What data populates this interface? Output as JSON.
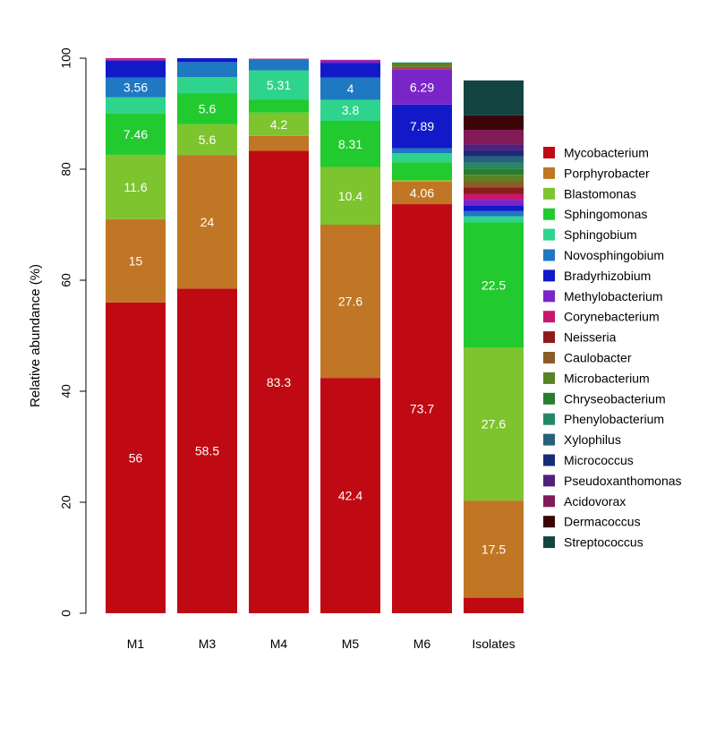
{
  "chart_data": {
    "type": "bar",
    "stacked": true,
    "title": "",
    "xlabel": "",
    "ylabel": "Relative abundance (%)",
    "ylim": [
      0,
      100
    ],
    "yticks": [
      0,
      20,
      40,
      60,
      80,
      100
    ],
    "grid": false,
    "legend_position": "right",
    "categories": [
      "M1",
      "M3",
      "M4",
      "M5",
      "M6",
      "Isolates"
    ],
    "series": [
      {
        "name": "Mycobacterium",
        "color": "#bf0a13",
        "values": [
          56,
          58.5,
          83.3,
          42.4,
          73.7,
          2.8
        ]
      },
      {
        "name": "Porphyrobacter",
        "color": "#c07624",
        "values": [
          15,
          24,
          2.7,
          27.6,
          4.06,
          17.5
        ]
      },
      {
        "name": "Blastomonas",
        "color": "#7dc42e",
        "values": [
          11.6,
          5.6,
          4.2,
          10.4,
          0.3,
          27.6
        ]
      },
      {
        "name": "Sphingomonas",
        "color": "#22c92f",
        "values": [
          7.46,
          5.6,
          2.3,
          8.31,
          3.2,
          22.5
        ]
      },
      {
        "name": "Sphingobium",
        "color": "#2fd48c",
        "values": [
          2.9,
          2.9,
          5.31,
          3.8,
          1.6,
          1.1
        ]
      },
      {
        "name": "Novosphingobium",
        "color": "#1f78c2",
        "values": [
          3.56,
          2.7,
          1.9,
          4,
          0.9,
          1.0
        ]
      },
      {
        "name": "Bradyrhizobium",
        "color": "#1119c9",
        "values": [
          3.0,
          0.7,
          0.1,
          2.6,
          7.89,
          1.0
        ]
      },
      {
        "name": "Methylobacterium",
        "color": "#7a25c8",
        "values": [
          0.2,
          0,
          0,
          0.5,
          6.29,
          1.0
        ]
      },
      {
        "name": "Corynebacterium",
        "color": "#c8166f",
        "values": [
          0.3,
          0.1,
          0.1,
          0.1,
          0.2,
          1.0
        ]
      },
      {
        "name": "Neisseria",
        "color": "#8c1b1b",
        "values": [
          0,
          0,
          0,
          0,
          0,
          1.2
        ]
      },
      {
        "name": "Caulobacter",
        "color": "#8a5d27",
        "values": [
          0,
          0,
          0,
          0,
          0.3,
          1.2
        ]
      },
      {
        "name": "Microbacterium",
        "color": "#5a8226",
        "values": [
          0,
          0,
          0,
          0,
          0.6,
          1.1
        ]
      },
      {
        "name": "Chryseobacterium",
        "color": "#2a7d2e",
        "values": [
          0,
          0,
          0,
          0,
          0,
          1.1
        ]
      },
      {
        "name": "Phenylobacterium",
        "color": "#268766",
        "values": [
          0,
          0,
          0,
          0,
          0.2,
          1.1
        ]
      },
      {
        "name": "Xylophilus",
        "color": "#25617a",
        "values": [
          0,
          0,
          0,
          0,
          0,
          1.1
        ]
      },
      {
        "name": "Micrococcus",
        "color": "#1a2a7a",
        "values": [
          0,
          0,
          0,
          0,
          0,
          1.1
        ]
      },
      {
        "name": "Pseudoxanthomonas",
        "color": "#521f7a",
        "values": [
          0,
          0,
          0,
          0,
          0,
          1.1
        ]
      },
      {
        "name": "Acidovorax",
        "color": "#821a55",
        "values": [
          0,
          0,
          0,
          0,
          0,
          2.6
        ]
      },
      {
        "name": "Dermacoccus",
        "color": "#3b0507",
        "values": [
          0,
          0,
          0,
          0,
          0,
          2.6
        ]
      },
      {
        "name": "Streptococcus",
        "color": "#134442",
        "values": [
          0,
          0,
          0,
          0,
          0,
          6.3
        ]
      }
    ],
    "data_labels": [
      {
        "category": "M1",
        "series": "Mycobacterium",
        "text": "56"
      },
      {
        "category": "M1",
        "series": "Porphyrobacter",
        "text": "15"
      },
      {
        "category": "M1",
        "series": "Blastomonas",
        "text": "11.6"
      },
      {
        "category": "M1",
        "series": "Sphingomonas",
        "text": "7.46"
      },
      {
        "category": "M1",
        "series": "Novosphingobium",
        "text": "3.56"
      },
      {
        "category": "M3",
        "series": "Mycobacterium",
        "text": "58.5"
      },
      {
        "category": "M3",
        "series": "Porphyrobacter",
        "text": "24"
      },
      {
        "category": "M3",
        "series": "Blastomonas",
        "text": "5.6"
      },
      {
        "category": "M3",
        "series": "Sphingomonas",
        "text": "5.6"
      },
      {
        "category": "M4",
        "series": "Mycobacterium",
        "text": "83.3"
      },
      {
        "category": "M4",
        "series": "Blastomonas",
        "text": "4.2"
      },
      {
        "category": "M4",
        "series": "Sphingobium",
        "text": "5.31"
      },
      {
        "category": "M5",
        "series": "Mycobacterium",
        "text": "42.4"
      },
      {
        "category": "M5",
        "series": "Porphyrobacter",
        "text": "27.6"
      },
      {
        "category": "M5",
        "series": "Blastomonas",
        "text": "10.4"
      },
      {
        "category": "M5",
        "series": "Sphingomonas",
        "text": "8.31"
      },
      {
        "category": "M5",
        "series": "Sphingobium",
        "text": "3.8"
      },
      {
        "category": "M5",
        "series": "Novosphingobium",
        "text": "4"
      },
      {
        "category": "M6",
        "series": "Mycobacterium",
        "text": "73.7"
      },
      {
        "category": "M6",
        "series": "Porphyrobacter",
        "text": "4.06"
      },
      {
        "category": "M6",
        "series": "Bradyrhizobium",
        "text": "7.89"
      },
      {
        "category": "M6",
        "series": "Methylobacterium",
        "text": "6.29"
      },
      {
        "category": "Isolates",
        "series": "Porphyrobacter",
        "text": "17.5"
      },
      {
        "category": "Isolates",
        "series": "Blastomonas",
        "text": "27.6"
      },
      {
        "category": "Isolates",
        "series": "Sphingomonas",
        "text": "22.5"
      }
    ]
  }
}
